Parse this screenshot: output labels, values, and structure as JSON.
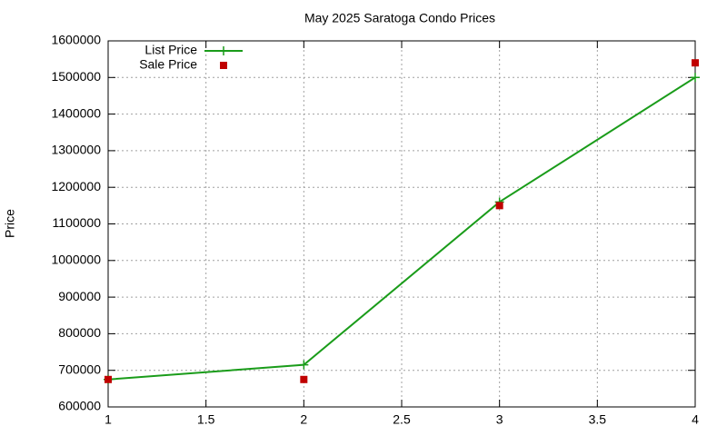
{
  "chart_data": {
    "type": "line",
    "title": "May 2025 Saratoga Condo Prices",
    "y_label": "Price",
    "x": [
      1,
      2,
      3,
      4
    ],
    "series": [
      {
        "name": "List Price",
        "color": "#1a9c1a",
        "line": true,
        "marker": "plus",
        "values": [
          675000,
          715000,
          1160000,
          1500000
        ]
      },
      {
        "name": "Sale Price",
        "color": "#c00000",
        "line": false,
        "marker": "square",
        "values": [
          675000,
          675000,
          1150000,
          1540000
        ]
      }
    ],
    "xlim": [
      1,
      4
    ],
    "xticks": [
      1,
      1.5,
      2,
      2.5,
      3,
      3.5,
      4
    ],
    "ylim": [
      600000,
      1600000
    ],
    "yticks": [
      600000,
      700000,
      800000,
      900000,
      1000000,
      1100000,
      1200000,
      1300000,
      1400000,
      1500000,
      1600000
    ],
    "grid": true,
    "legend": "top-left"
  }
}
